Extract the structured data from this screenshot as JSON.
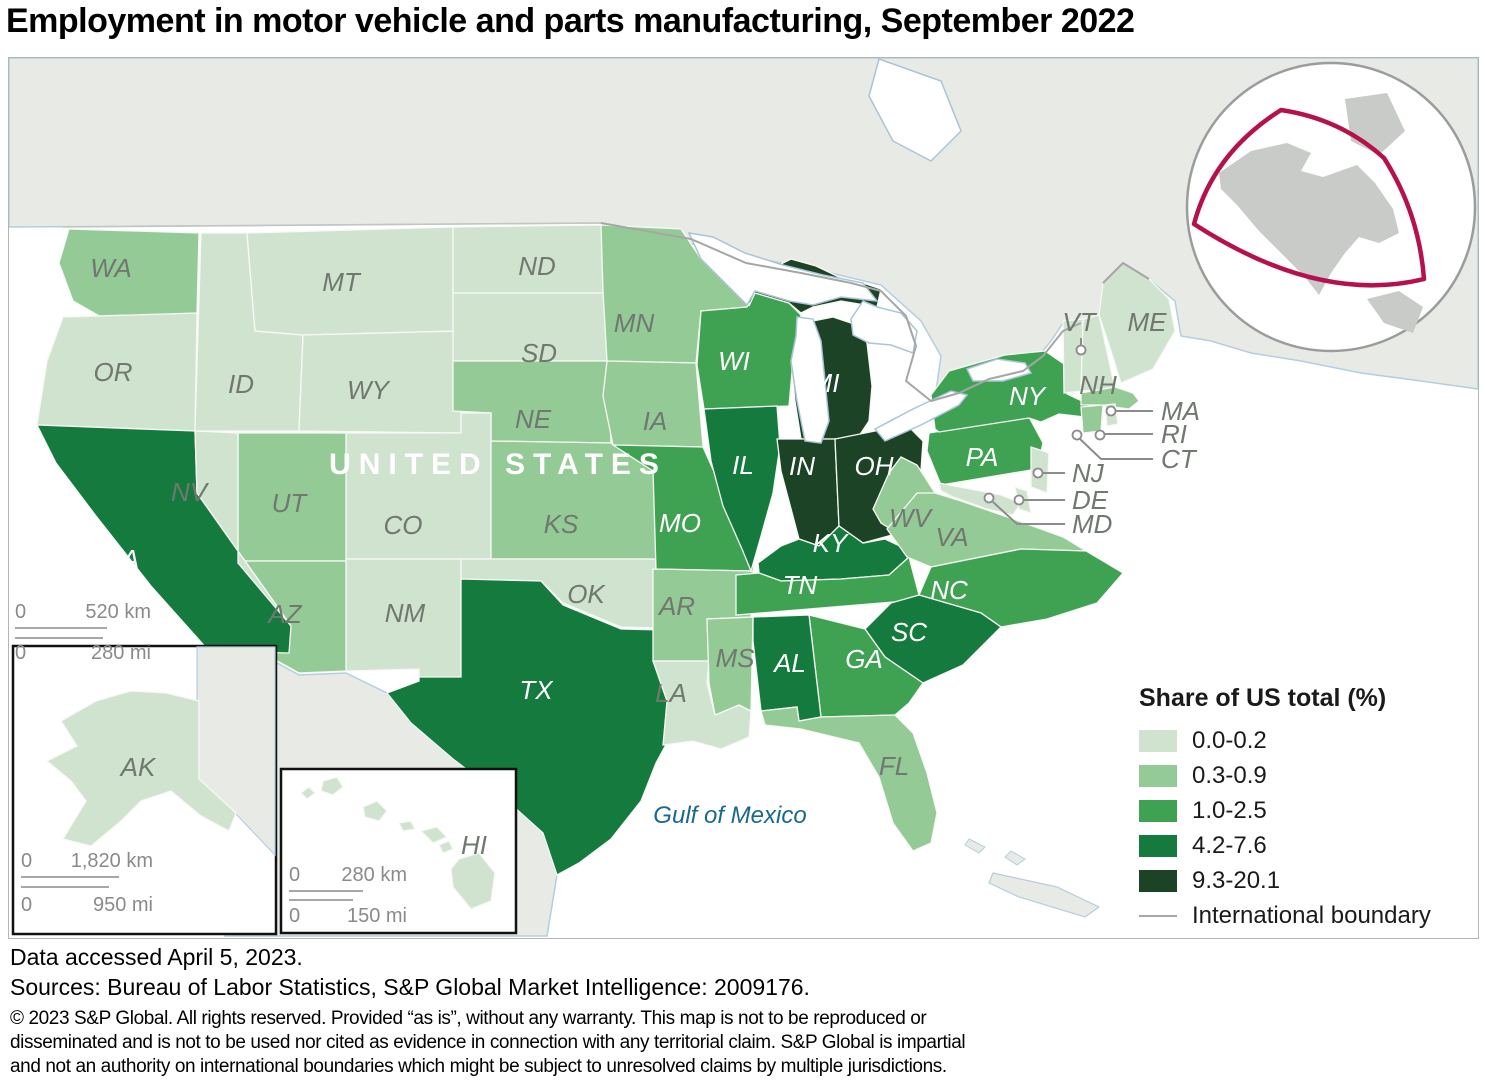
{
  "title": "Employment in motor vehicle and parts manufacturing, September 2022",
  "map": {
    "country_label": "UNITED STATES",
    "gulf_label": "Gulf of Mexico",
    "states": [
      {
        "id": "WA",
        "bin": 1
      },
      {
        "id": "OR",
        "bin": 0
      },
      {
        "id": "ID",
        "bin": 0
      },
      {
        "id": "MT",
        "bin": 0
      },
      {
        "id": "WY",
        "bin": 0
      },
      {
        "id": "ND",
        "bin": 0
      },
      {
        "id": "SD",
        "bin": 0
      },
      {
        "id": "NE",
        "bin": 1
      },
      {
        "id": "CO",
        "bin": 0
      },
      {
        "id": "NM",
        "bin": 0
      },
      {
        "id": "UT",
        "bin": 1
      },
      {
        "id": "AZ",
        "bin": 1
      },
      {
        "id": "CA",
        "bin": 3
      },
      {
        "id": "NV",
        "bin": 0
      },
      {
        "id": "KS",
        "bin": 1
      },
      {
        "id": "OK",
        "bin": 0
      },
      {
        "id": "TX",
        "bin": 3
      },
      {
        "id": "MN",
        "bin": 1
      },
      {
        "id": "IA",
        "bin": 1
      },
      {
        "id": "MO",
        "bin": 2
      },
      {
        "id": "AR",
        "bin": 1
      },
      {
        "id": "LA",
        "bin": 0
      },
      {
        "id": "WI",
        "bin": 2
      },
      {
        "id": "IL",
        "bin": 3
      },
      {
        "id": "MI",
        "bin": 4
      },
      {
        "id": "IN",
        "bin": 4
      },
      {
        "id": "OH",
        "bin": 4
      },
      {
        "id": "KY",
        "bin": 3
      },
      {
        "id": "TN",
        "bin": 2
      },
      {
        "id": "WV",
        "bin": 1
      },
      {
        "id": "VA",
        "bin": 1
      },
      {
        "id": "NC",
        "bin": 2
      },
      {
        "id": "SC",
        "bin": 3
      },
      {
        "id": "GA",
        "bin": 2
      },
      {
        "id": "AL",
        "bin": 3
      },
      {
        "id": "MS",
        "bin": 1
      },
      {
        "id": "FL",
        "bin": 1
      },
      {
        "id": "PA",
        "bin": 2
      },
      {
        "id": "NY",
        "bin": 2
      },
      {
        "id": "NJ",
        "bin": 0
      },
      {
        "id": "MD",
        "bin": 0
      },
      {
        "id": "DE",
        "bin": 0
      },
      {
        "id": "VT",
        "bin": 0
      },
      {
        "id": "NH",
        "bin": 0
      },
      {
        "id": "ME",
        "bin": 0
      },
      {
        "id": "MA",
        "bin": 1
      },
      {
        "id": "CT",
        "bin": 1
      },
      {
        "id": "RI",
        "bin": 0
      },
      {
        "id": "AK",
        "bin": 0
      },
      {
        "id": "HI",
        "bin": 0
      }
    ]
  },
  "legend": {
    "title": "Share of US total (%)",
    "classes": [
      {
        "range": "0.0-0.2",
        "color": "#cfe3cf"
      },
      {
        "range": "0.3-0.9",
        "color": "#94ca96"
      },
      {
        "range": "1.0-2.5",
        "color": "#3fa253"
      },
      {
        "range": "4.2-7.6",
        "color": "#157a3e"
      },
      {
        "range": "9.3-20.1",
        "color": "#1c4326"
      }
    ],
    "boundary_label": "International boundary"
  },
  "scalebars": {
    "main": {
      "zero_km": "0",
      "km": "520 km",
      "zero_mi": "0",
      "mi": "280 mi"
    },
    "alaska": {
      "zero_km": "0",
      "km": "1,820 km",
      "zero_mi": "0",
      "mi": "950 mi"
    },
    "hawaii": {
      "zero_km": "0",
      "km": "280 km",
      "zero_mi": "0",
      "mi": "150 mi"
    }
  },
  "footer": {
    "accessed": "Data accessed April 5, 2023.",
    "sources": "Sources: Bureau of Labor Statistics, S&P Global Market Intelligence: 2009176.",
    "fine_print": [
      "© 2023 S&P Global. All rights reserved. Provided “as is”, without any warranty. This map is not to be reproduced or",
      "disseminated and is not to be used nor cited as evidence in connection with any territorial claim. S&P Global is impartial",
      "and not an authority on international boundaries which might be subject to unresolved claims by multiple jurisdictions."
    ]
  },
  "colors": {
    "foreign_land": "#e8eae6",
    "coastline": "#b5cede",
    "boundary_line": "#a6a6a6",
    "label_gray": "#707870",
    "label_white": "#ffffff",
    "gulf_blue": "#19688e",
    "extent_red": "#b5124d",
    "globe_land": "#c9cbc9",
    "scale_gray": "#8a8a8a"
  }
}
